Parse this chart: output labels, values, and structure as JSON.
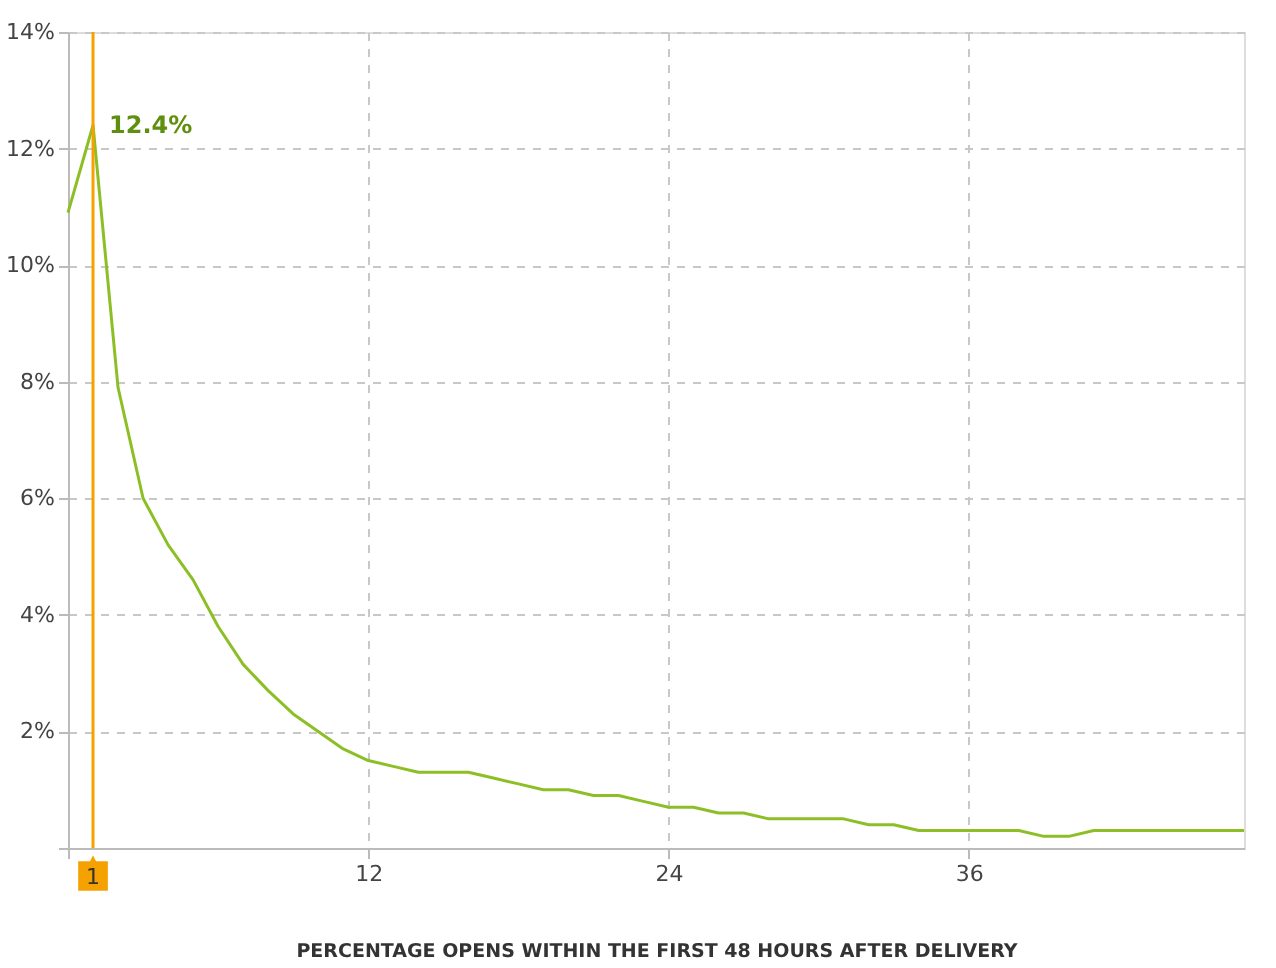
{
  "chart_data": {
    "type": "line",
    "xlabel": "PERCENTAGE OPENS WITHIN THE FIRST 48 HOURS AFTER DELIVERY",
    "x": [
      0,
      1,
      2,
      3,
      4,
      5,
      6,
      7,
      8,
      9,
      10,
      11,
      12,
      13,
      14,
      15,
      16,
      17,
      18,
      19,
      20,
      21,
      22,
      23,
      24,
      25,
      26,
      27,
      28,
      29,
      30,
      31,
      32,
      33,
      34,
      35,
      36,
      37,
      38,
      39,
      40,
      41,
      42,
      43,
      44,
      45,
      46,
      47
    ],
    "series": [
      {
        "color": "#8cbf26",
        "values": [
          10.9,
          12.4,
          7.9,
          6.0,
          5.2,
          4.6,
          3.8,
          3.15,
          2.7,
          2.3,
          2.0,
          1.7,
          1.5,
          1.4,
          1.3,
          1.3,
          1.3,
          1.2,
          1.1,
          1.0,
          1.0,
          0.9,
          0.9,
          0.8,
          0.7,
          0.7,
          0.6,
          0.6,
          0.5,
          0.5,
          0.5,
          0.5,
          0.4,
          0.4,
          0.3,
          0.3,
          0.3,
          0.3,
          0.3,
          0.2,
          0.2,
          0.3,
          0.3,
          0.3,
          0.3,
          0.3,
          0.3,
          0.3
        ]
      }
    ],
    "xlim": [
      0,
      47
    ],
    "xticks": [
      {
        "value": 0,
        "label": null
      },
      12,
      24,
      36
    ],
    "ylim": [
      0,
      14
    ],
    "yticks": [
      {
        "value": 0,
        "label": null
      },
      {
        "value": 2,
        "label": "2%"
      },
      {
        "value": 4,
        "label": "4%"
      },
      {
        "value": 6,
        "label": "6%"
      },
      {
        "value": 8,
        "label": "8%"
      },
      {
        "value": 10,
        "label": "10%"
      },
      {
        "value": 12,
        "label": "12%"
      },
      {
        "value": 14,
        "label": "14%"
      }
    ],
    "grid": true,
    "line_style": "solid",
    "marker": "none",
    "ref_lines": [
      {
        "axis": "x",
        "value": 1,
        "label": "1",
        "color": "#f5a200"
      }
    ],
    "annotations": [
      {
        "text": "12.4%",
        "x": 1,
        "y": 12.4
      }
    ]
  }
}
